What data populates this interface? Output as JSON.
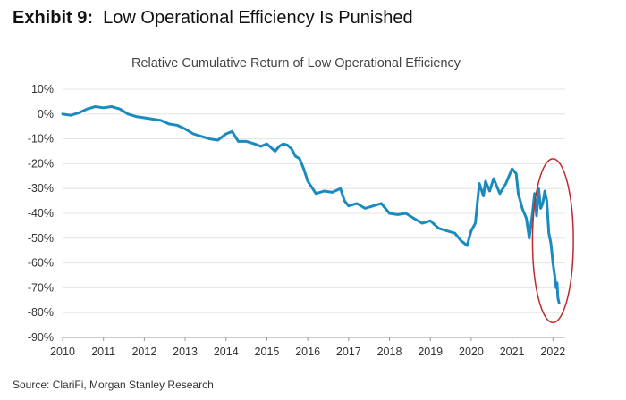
{
  "exhibit": {
    "label": "Exhibit 9:",
    "title": "Low Operational Efficiency Is Punished"
  },
  "source": "Source: ClariFi, Morgan Stanley Research",
  "colors": {
    "line": "#1b8bbf",
    "highlight_ellipse": "#c0282e",
    "grid": "#e3e3e3",
    "text": "#333333"
  },
  "chart_data": {
    "type": "line",
    "title": "Relative Cumulative Return of Low Operational Efficiency",
    "xlabel": "",
    "ylabel": "",
    "xlim": [
      2010,
      2022.3
    ],
    "ylim": [
      -90,
      10
    ],
    "x_ticks": [
      "2010",
      "2011",
      "2012",
      "2013",
      "2014",
      "2015",
      "2016",
      "2017",
      "2018",
      "2019",
      "2020",
      "2021",
      "2022"
    ],
    "y_ticks": [
      "10%",
      "0%",
      "-10%",
      "-20%",
      "-30%",
      "-40%",
      "-50%",
      "-60%",
      "-70%",
      "-80%",
      "-90%"
    ],
    "grid": "horizontal",
    "legend": "none",
    "highlight": {
      "shape": "ellipse",
      "x_range": [
        2021.5,
        2022.5
      ],
      "y_range": [
        -84,
        -18
      ]
    },
    "series": [
      {
        "x": [
          2010.0,
          2010.2,
          2010.4,
          2010.6,
          2010.8,
          2011.0,
          2011.2,
          2011.4,
          2011.6,
          2011.8,
          2012.0,
          2012.2,
          2012.4,
          2012.6,
          2012.8,
          2013.0,
          2013.2,
          2013.4,
          2013.6,
          2013.8,
          2014.0,
          2014.15,
          2014.3,
          2014.5,
          2014.7,
          2014.85,
          2015.0,
          2015.2,
          2015.3,
          2015.4,
          2015.5,
          2015.6,
          2015.7,
          2015.8,
          2015.9,
          2016.0,
          2016.2,
          2016.4,
          2016.6,
          2016.8,
          2016.9,
          2017.0,
          2017.2,
          2017.4,
          2017.6,
          2017.8,
          2018.0,
          2018.2,
          2018.4,
          2018.6,
          2018.8,
          2019.0,
          2019.2,
          2019.4,
          2019.6,
          2019.75,
          2019.9,
          2020.0,
          2020.1,
          2020.2,
          2020.3,
          2020.35,
          2020.45,
          2020.55,
          2020.7,
          2020.85,
          2021.0,
          2021.1,
          2021.15,
          2021.25,
          2021.35,
          2021.42,
          2021.5,
          2021.55,
          2021.6,
          2021.65,
          2021.7,
          2021.75,
          2021.8,
          2021.85,
          2021.9,
          2021.95,
          2022.0,
          2022.05,
          2022.08,
          2022.1,
          2022.12,
          2022.15
        ],
        "y": [
          0,
          -0.5,
          0.5,
          2,
          3,
          2.5,
          3,
          2,
          0,
          -1,
          -1.5,
          -2,
          -2.5,
          -4,
          -4.5,
          -6,
          -8,
          -9,
          -10,
          -10.5,
          -8,
          -7,
          -11,
          -11,
          -12,
          -13,
          -12,
          -15,
          -13,
          -12,
          -12.5,
          -14,
          -17,
          -18,
          -22,
          -27,
          -32,
          -31,
          -31.5,
          -30,
          -35,
          -37,
          -36,
          -38,
          -37,
          -36,
          -40,
          -40.5,
          -40,
          -42,
          -44,
          -43,
          -46,
          -47,
          -48,
          -51,
          -53,
          -47,
          -44,
          -28,
          -33,
          -27,
          -31,
          -26,
          -32,
          -28,
          -22,
          -24,
          -32,
          -38,
          -42,
          -50,
          -40,
          -32,
          -41,
          -30,
          -38,
          -36,
          -31,
          -35,
          -48,
          -52,
          -60,
          -66,
          -70,
          -68,
          -74,
          -76
        ]
      }
    ]
  }
}
